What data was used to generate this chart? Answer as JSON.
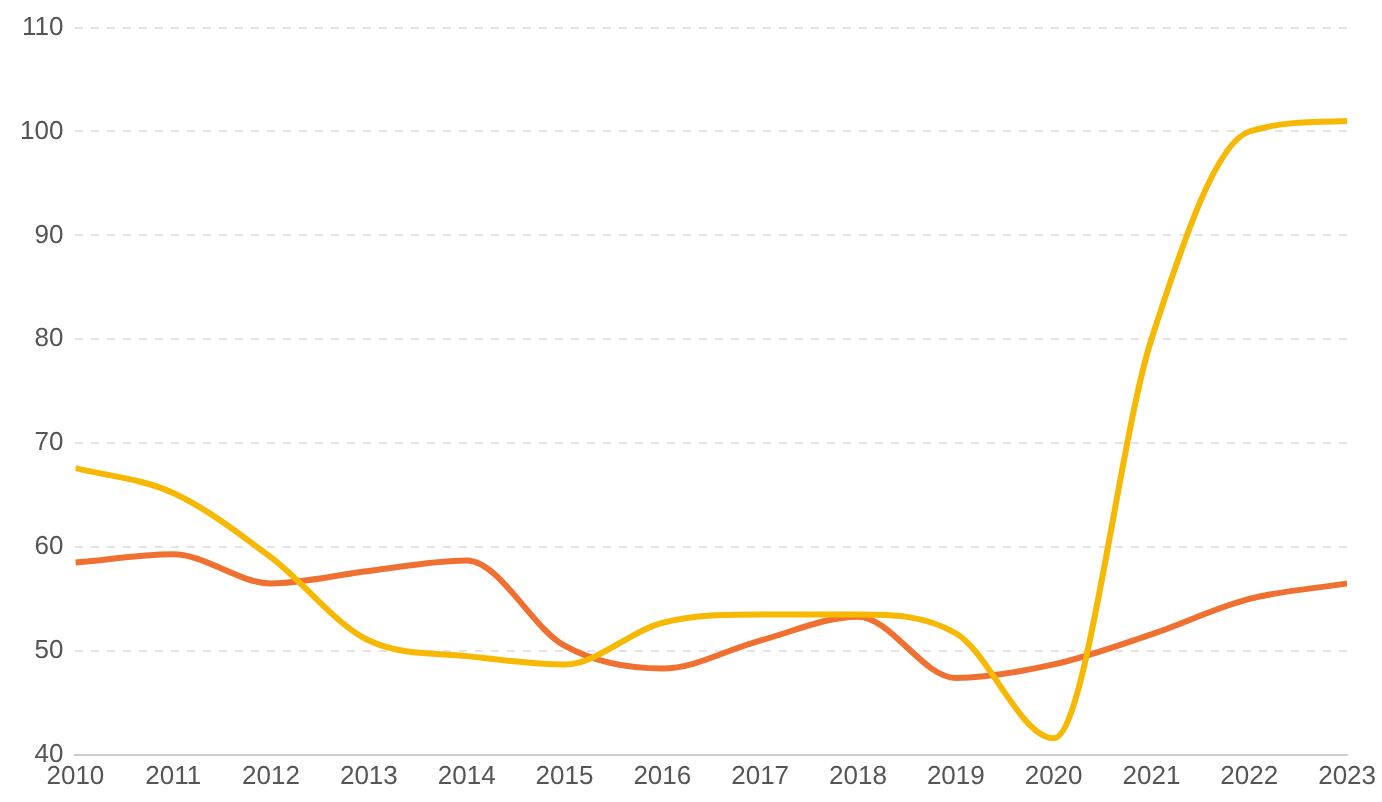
{
  "chart_data": {
    "type": "line",
    "x": [
      2010,
      2011,
      2012,
      2013,
      2014,
      2015,
      2016,
      2017,
      2018,
      2019,
      2020,
      2021,
      2022,
      2023
    ],
    "xlim": [
      2010,
      2023
    ],
    "xticks": [
      2010,
      2011,
      2012,
      2013,
      2014,
      2015,
      2016,
      2017,
      2018,
      2019,
      2020,
      2021,
      2022,
      2023
    ],
    "ylim": [
      40,
      110
    ],
    "yticks": [
      40,
      50,
      60,
      70,
      80,
      90,
      100,
      110
    ],
    "grid": "y",
    "marker": "none",
    "line_style": "solid",
    "series": [
      {
        "color": "#f6b800",
        "values": [
          67.6,
          65.2,
          59,
          51,
          49.5,
          48.7,
          52.7,
          53.5,
          53.5,
          51.7,
          41.6,
          80,
          100,
          101
        ]
      },
      {
        "color": "#ef7030",
        "values": [
          58.5,
          59.3,
          56.5,
          57.7,
          58.7,
          50.5,
          48.3,
          51,
          53.3,
          47.4,
          48.7,
          51.6,
          55,
          56.5
        ]
      }
    ]
  }
}
